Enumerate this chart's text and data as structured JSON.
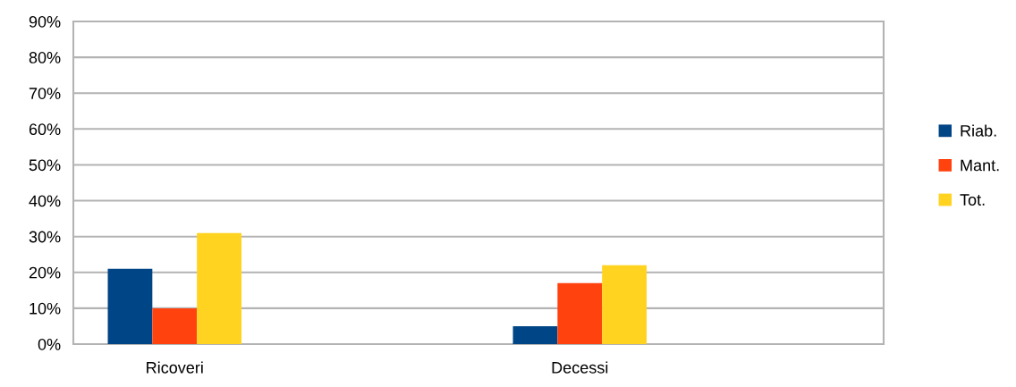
{
  "chart_data": {
    "type": "bar",
    "categories": [
      "Ricoveri",
      null,
      "Decessi",
      null
    ],
    "series": [
      {
        "name": "Riab.",
        "color": "#004586",
        "values": [
          21,
          null,
          5,
          null
        ]
      },
      {
        "name": "Mant.",
        "color": "#ff420e",
        "values": [
          10,
          null,
          17,
          null
        ]
      },
      {
        "name": "Tot.",
        "color": "#ffd320",
        "values": [
          31,
          null,
          22,
          null
        ]
      }
    ],
    "ylim": [
      0,
      90
    ],
    "yticks": [
      {
        "value": 0,
        "label": "0%"
      },
      {
        "value": 10,
        "label": "10%"
      },
      {
        "value": 20,
        "label": "20%"
      },
      {
        "value": 30,
        "label": "30%"
      },
      {
        "value": 40,
        "label": "40%"
      },
      {
        "value": 50,
        "label": "50%"
      },
      {
        "value": 60,
        "label": "60%"
      },
      {
        "value": 70,
        "label": "70%"
      },
      {
        "value": 80,
        "label": "80%"
      },
      {
        "value": 90,
        "label": "90%"
      }
    ],
    "grid": "y",
    "legend": "right"
  }
}
